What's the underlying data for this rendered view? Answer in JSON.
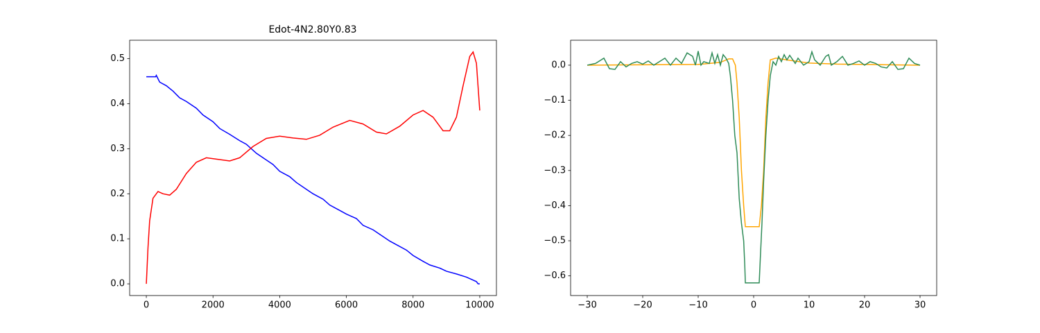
{
  "chart_data": [
    {
      "type": "line",
      "title": "Edot-4N2.80Y0.83",
      "xlim": [
        -500,
        10500
      ],
      "ylim": [
        -0.026,
        0.541
      ],
      "xticks": [
        0,
        2000,
        4000,
        6000,
        8000,
        10000
      ],
      "yticks": [
        {
          "value": 0,
          "label": "0.0"
        },
        0.1,
        0.2,
        0.3,
        0.4,
        0.5
      ],
      "series": [
        {
          "color": "#0000ff",
          "x": [
            0,
            280,
            300,
            400,
            600,
            800,
            1000,
            1200,
            1500,
            1700,
            2000,
            2200,
            2500,
            2800,
            3000,
            3300,
            3500,
            3800,
            4000,
            4300,
            4500,
            4800,
            5000,
            5300,
            5500,
            5800,
            6000,
            6300,
            6500,
            6800,
            7000,
            7300,
            7500,
            7800,
            8000,
            8300,
            8500,
            8800,
            9000,
            9300,
            9600,
            9900,
            9950,
            10000
          ],
          "values": [
            0.46,
            0.46,
            0.463,
            0.448,
            0.44,
            0.428,
            0.413,
            0.405,
            0.39,
            0.375,
            0.36,
            0.345,
            0.332,
            0.318,
            0.31,
            0.29,
            0.28,
            0.265,
            0.25,
            0.238,
            0.225,
            0.21,
            0.2,
            0.188,
            0.175,
            0.163,
            0.155,
            0.145,
            0.13,
            0.12,
            0.11,
            0.095,
            0.087,
            0.075,
            0.063,
            0.05,
            0.042,
            0.035,
            0.028,
            0.022,
            0.015,
            0.005,
            0.0,
            0.0
          ]
        },
        {
          "color": "#ff0000",
          "x": [
            0,
            50,
            100,
            200,
            350,
            500,
            700,
            900,
            1200,
            1500,
            1800,
            2100,
            2500,
            2800,
            3200,
            3600,
            4000,
            4400,
            4800,
            5200,
            5600,
            6100,
            6500,
            6900,
            7200,
            7600,
            8000,
            8300,
            8600,
            8900,
            9100,
            9300,
            9500,
            9700,
            9800,
            9900,
            10000
          ],
          "values": [
            0,
            0.08,
            0.14,
            0.19,
            0.205,
            0.2,
            0.197,
            0.21,
            0.245,
            0.27,
            0.28,
            0.277,
            0.273,
            0.28,
            0.305,
            0.323,
            0.328,
            0.324,
            0.321,
            0.33,
            0.348,
            0.363,
            0.355,
            0.337,
            0.333,
            0.35,
            0.375,
            0.385,
            0.37,
            0.34,
            0.34,
            0.37,
            0.44,
            0.505,
            0.515,
            0.49,
            0.385
          ]
        }
      ]
    },
    {
      "type": "line",
      "xlim": [
        -33,
        33
      ],
      "ylim": [
        -0.656,
        0.071
      ],
      "xticks": [
        {
          "value": -30,
          "label": "−30"
        },
        {
          "value": -20,
          "label": "−20"
        },
        {
          "value": -10,
          "label": "−10"
        },
        0,
        10,
        20,
        30
      ],
      "yticks": [
        {
          "value": -0.6,
          "label": "−0.6"
        },
        {
          "value": -0.5,
          "label": "−0.5"
        },
        {
          "value": -0.4,
          "label": "−0.4"
        },
        {
          "value": -0.3,
          "label": "−0.3"
        },
        {
          "value": -0.2,
          "label": "−0.2"
        },
        {
          "value": -0.1,
          "label": "−0.1"
        },
        {
          "value": 0,
          "label": "0.0"
        }
      ],
      "series": [
        {
          "color": "#ffa500",
          "x": [
            -30,
            -10,
            -6,
            -4.5,
            -3.8,
            -3.3,
            -3,
            -2.6,
            -2.2,
            -1.8,
            -1.5,
            1,
            1.4,
            1.8,
            2.2,
            2.6,
            3,
            4,
            6,
            10,
            15,
            30
          ],
          "values": [
            0,
            0.002,
            0.008,
            0.018,
            0.018,
            0,
            -0.05,
            -0.15,
            -0.3,
            -0.4,
            -0.46,
            -0.46,
            -0.4,
            -0.3,
            -0.15,
            -0.05,
            0.015,
            0.02,
            0.015,
            0.006,
            0.003,
            0
          ]
        },
        {
          "color": "#2e8b57",
          "x": [
            -30,
            -28.5,
            -27,
            -26,
            -25,
            -24,
            -23,
            -22,
            -21,
            -20,
            -19,
            -18,
            -17,
            -16,
            -15,
            -14,
            -13,
            -12,
            -11,
            -10.5,
            -10,
            -9.5,
            -9,
            -8,
            -7.5,
            -7,
            -6.5,
            -6,
            -5.5,
            -5,
            -4.5,
            -4.2,
            -3.8,
            -3.4,
            -3,
            -2.6,
            -2.2,
            -1.8,
            -1.6,
            -1.5,
            1,
            1.2,
            1.5,
            1.8,
            2.2,
            2.6,
            3,
            3.5,
            4,
            4.5,
            5,
            5.5,
            6,
            6.5,
            7.5,
            8,
            9,
            10,
            10.5,
            11,
            12,
            13,
            13.5,
            14,
            15,
            16,
            17,
            18,
            19,
            20,
            21,
            22,
            23,
            24,
            25,
            26,
            27,
            28,
            29,
            30
          ],
          "values": [
            0,
            0.005,
            0.02,
            -0.01,
            -0.012,
            0.01,
            -0.005,
            0.005,
            0.01,
            0.003,
            0.012,
            0,
            0.01,
            0.02,
            0,
            0.02,
            0.005,
            0.035,
            0.025,
            0,
            0.04,
            0,
            0.01,
            0.005,
            0.035,
            0.005,
            0.03,
            0,
            0.03,
            0.02,
            0.005,
            -0.03,
            -0.1,
            -0.2,
            -0.25,
            -0.38,
            -0.45,
            -0.5,
            -0.57,
            -0.62,
            -0.62,
            -0.55,
            -0.45,
            -0.33,
            -0.2,
            -0.1,
            -0.03,
            0.01,
            0,
            0.025,
            0.01,
            0.03,
            0.015,
            0.028,
            0.005,
            0.02,
            0,
            0.01,
            0.038,
            0.015,
            0,
            0.025,
            0.03,
            0,
            0.01,
            0.025,
            0,
            0.005,
            0.012,
            0,
            0.01,
            0.005,
            -0.005,
            -0.008,
            0.01,
            -0.012,
            -0.01,
            0.02,
            0.005,
            0
          ]
        }
      ]
    }
  ]
}
